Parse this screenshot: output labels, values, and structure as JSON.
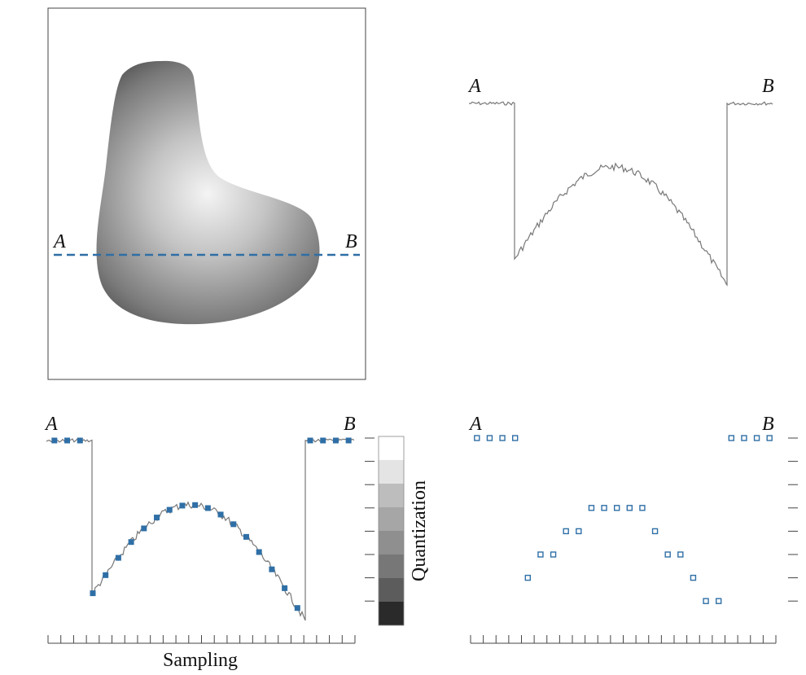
{
  "colors": {
    "accent": "#2f6fa6",
    "signal": "#777777",
    "frame": "#444444"
  },
  "panel_a": {
    "label_a": "A",
    "label_b": "B"
  },
  "panel_b": {
    "label_a": "A",
    "label_b": "B"
  },
  "panel_c": {
    "label_a": "A",
    "label_b": "B",
    "x_caption": "Sampling",
    "y_caption": "Quantization"
  },
  "panel_d": {
    "label_a": "A",
    "label_b": "B"
  },
  "quantization": {
    "levels": 8,
    "gray_levels": [
      "#ffffff",
      "#e4e4e4",
      "#bdbdbd",
      "#a6a6a6",
      "#8f8f8f",
      "#777777",
      "#5c5c5c",
      "#2a2a2a"
    ]
  },
  "sampling": {
    "ticks": 24
  },
  "scan_line": {
    "samples": [
      7,
      7,
      7,
      7,
      1,
      2,
      2,
      3,
      3,
      4,
      4,
      4,
      4,
      4,
      3,
      2,
      2,
      1,
      0,
      0,
      7,
      7,
      7,
      7
    ]
  }
}
